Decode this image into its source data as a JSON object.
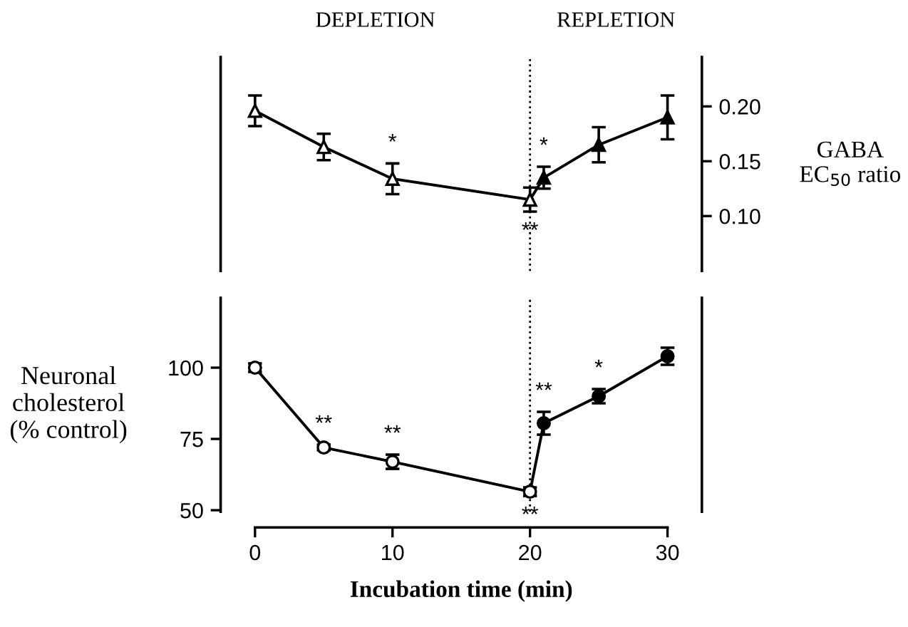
{
  "chart_data": [
    {
      "type": "line",
      "ylabel": "GABA\nEC$_{50}$ ratio",
      "x": [
        0,
        5,
        10,
        20,
        21,
        25,
        30
      ],
      "xlim": [
        -2.5,
        32.5
      ],
      "ylim": [
        0.05,
        0.245
      ],
      "yticks": [
        {
          "value": 0.1,
          "label": "0.10"
        },
        0.15,
        {
          "value": 0.2,
          "label": "0.20"
        }
      ],
      "tick_labels": "y",
      "marker": "triangle",
      "line_style": "solid",
      "grid": false,
      "legend": false,
      "series": [
        {
          "color": "#000000",
          "colors": [
            "#ffffff",
            "#ffffff",
            "#ffffff",
            "#ffffff",
            "#000000",
            "#000000",
            "#000000"
          ],
          "values": [
            0.196,
            0.163,
            0.134,
            0.115,
            0.135,
            0.165,
            0.19
          ],
          "errors": [
            0.014,
            0.012,
            0.014,
            0.011,
            0.01,
            0.016,
            0.02
          ]
        }
      ],
      "ref_lines": [
        {
          "axis": "x",
          "value": 20,
          "line_style": "dotted",
          "color": "#000000"
        }
      ],
      "annotations": [
        "DEPLETION",
        "REPLETION",
        {
          "text": "*",
          "x": 10,
          "y": 0.134
        },
        {
          "text": "*",
          "x": 21,
          "y": 0.135
        },
        {
          "text": "**",
          "x": 20,
          "y": 0.115
        }
      ]
    },
    {
      "type": "line",
      "xlabel": "Incubation time (min)",
      "ylabel": "Neuronal\ncholesterol\n(% control)",
      "x": [
        0,
        5,
        10,
        20,
        21,
        25,
        30
      ],
      "xlim": [
        -2.5,
        32.5
      ],
      "xticks": [
        0,
        10,
        20,
        30
      ],
      "ylim": [
        49.5,
        124.5
      ],
      "yticks": [
        50,
        75,
        100
      ],
      "marker": "circle",
      "line_style": "solid",
      "grid": false,
      "legend": false,
      "series": [
        {
          "color": "#000000",
          "colors": [
            "#ffffff",
            "#ffffff",
            "#ffffff",
            "#ffffff",
            "#000000",
            "#000000",
            "#000000"
          ],
          "values": [
            100,
            72,
            67,
            56.5,
            80.5,
            90,
            104
          ],
          "errors": [
            1.5,
            1,
            2.5,
            1.5,
            4,
            2.5,
            3
          ]
        }
      ],
      "ref_lines": [
        {
          "axis": "x",
          "value": 20,
          "line_style": "dotted",
          "color": "#000000"
        }
      ],
      "annotations": [
        {
          "text": "**",
          "x": 5,
          "y": 72
        },
        {
          "text": "**",
          "x": 10,
          "y": 67
        },
        {
          "text": "**",
          "x": 21,
          "y": 80.5
        },
        {
          "text": "*",
          "x": 25,
          "y": 90
        },
        {
          "text": "**",
          "x": 20,
          "y": 56.5
        }
      ]
    }
  ]
}
